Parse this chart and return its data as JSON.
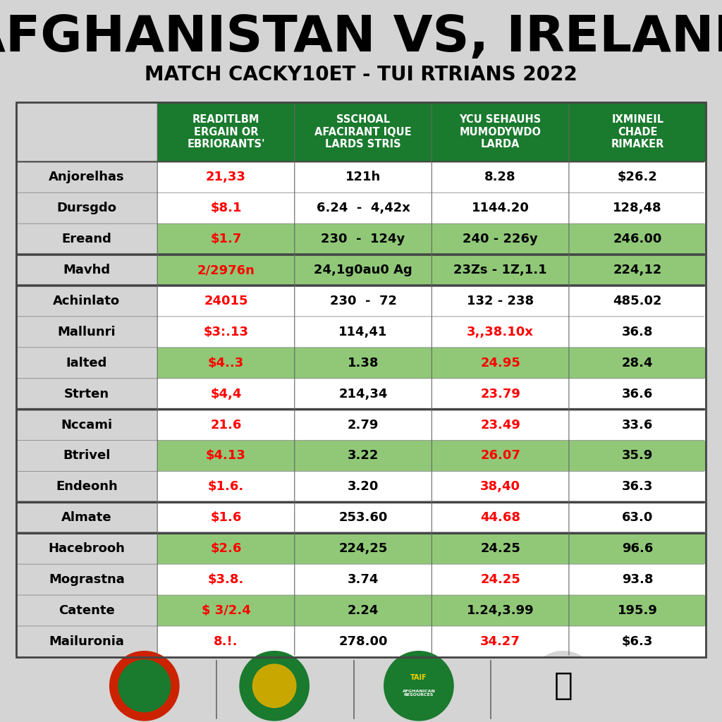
{
  "title": "AFGHANISTAN VS, IRELAND",
  "subtitle": "MATCH CACKY10ET - TUI RTRIANS 2022",
  "bg_color": "#d4d4d4",
  "header_bg": "#1a7a2e",
  "header_text_color": "#ffffff",
  "col_headers": [
    "READITLBM\nERGAIN OR\nEBRIORANTS'",
    "SSCHOAL\nAFACIRANT IQUE\nLARDS STRIS",
    "YCU SEHAUHS\nMUMODYWDO\nLARDA",
    "IXMINEIL\nCHADE\nRIMAKER"
  ],
  "rows": [
    {
      "name": "Anjorelhas",
      "vals": [
        "21,33",
        "121h",
        "8.28",
        "$26.2"
      ],
      "val_colors": [
        "red",
        "black",
        "black",
        "black"
      ],
      "bg": "white"
    },
    {
      "name": "Dursgdo",
      "vals": [
        "$8.1",
        "6.24  -  4,42x",
        "1144.20",
        "128,48"
      ],
      "val_colors": [
        "red",
        "black",
        "black",
        "black"
      ],
      "bg": "white"
    },
    {
      "name": "Ereand",
      "vals": [
        "$1.7",
        "230  -  124y",
        "240 - 226y",
        "246.00"
      ],
      "val_colors": [
        "red",
        "black",
        "black",
        "black"
      ],
      "bg": "#90c878"
    },
    {
      "name": "Mavhd",
      "vals": [
        "2/2976n",
        "24,1g0au0 Ag",
        "23Zs - 1Z,1.1",
        "224,12"
      ],
      "val_colors": [
        "red",
        "black",
        "black",
        "black"
      ],
      "bg": "#90c878"
    },
    {
      "name": "Achinlato",
      "vals": [
        "24015",
        "230  -  72",
        "132 - 238",
        "485.02"
      ],
      "val_colors": [
        "red",
        "black",
        "black",
        "black"
      ],
      "bg": "white"
    },
    {
      "name": "Mallunri",
      "vals": [
        "$3:.13",
        "114,41",
        "3,,38.10x",
        "36.8"
      ],
      "val_colors": [
        "red",
        "black",
        "red",
        "black"
      ],
      "bg": "white"
    },
    {
      "name": "Ialted",
      "vals": [
        "$4..3",
        "1.38",
        "24.95",
        "28.4"
      ],
      "val_colors": [
        "red",
        "black",
        "red",
        "black"
      ],
      "bg": "#90c878"
    },
    {
      "name": "Strten",
      "vals": [
        "$4,4",
        "214,34",
        "23.79",
        "36.6"
      ],
      "val_colors": [
        "red",
        "black",
        "red",
        "black"
      ],
      "bg": "white"
    },
    {
      "name": "Nccami",
      "vals": [
        "21.6",
        "2.79",
        "23.49",
        "33.6"
      ],
      "val_colors": [
        "red",
        "black",
        "red",
        "black"
      ],
      "bg": "white"
    },
    {
      "name": "Btrivel",
      "vals": [
        "$4.13",
        "3.22",
        "26.07",
        "35.9"
      ],
      "val_colors": [
        "red",
        "black",
        "red",
        "black"
      ],
      "bg": "#90c878"
    },
    {
      "name": "Endeonh",
      "vals": [
        "$1.6.",
        "3.20",
        "38,40",
        "36.3"
      ],
      "val_colors": [
        "red",
        "black",
        "red",
        "black"
      ],
      "bg": "white"
    },
    {
      "name": "Almate",
      "vals": [
        "$1.6",
        "253.60",
        "44.68",
        "63.0"
      ],
      "val_colors": [
        "red",
        "black",
        "red",
        "black"
      ],
      "bg": "white"
    },
    {
      "name": "Hacebrooh",
      "vals": [
        "$2.6",
        "224,25",
        "24.25",
        "96.6"
      ],
      "val_colors": [
        "red",
        "black",
        "black",
        "black"
      ],
      "bg": "#90c878"
    },
    {
      "name": "Mograstna",
      "vals": [
        "$3.8.",
        "3.74",
        "24.25",
        "93.8"
      ],
      "val_colors": [
        "red",
        "black",
        "red",
        "black"
      ],
      "bg": "white"
    },
    {
      "name": "Catente",
      "vals": [
        "$ 3/2.4",
        "2.24",
        "1.24,3.99",
        "195.9"
      ],
      "val_colors": [
        "red",
        "black",
        "black",
        "black"
      ],
      "bg": "#90c878"
    },
    {
      "name": "Mailuronia",
      "vals": [
        "8.!.",
        "278.00",
        "34.27",
        "$6.3"
      ],
      "val_colors": [
        "red",
        "black",
        "red",
        "black"
      ],
      "bg": "white"
    }
  ],
  "separator_after_rows": [
    2,
    3,
    7,
    10,
    11
  ],
  "title_fontsize": 52,
  "subtitle_fontsize": 20,
  "header_fontsize": 10.5,
  "cell_fontsize": 13,
  "name_fontsize": 13
}
